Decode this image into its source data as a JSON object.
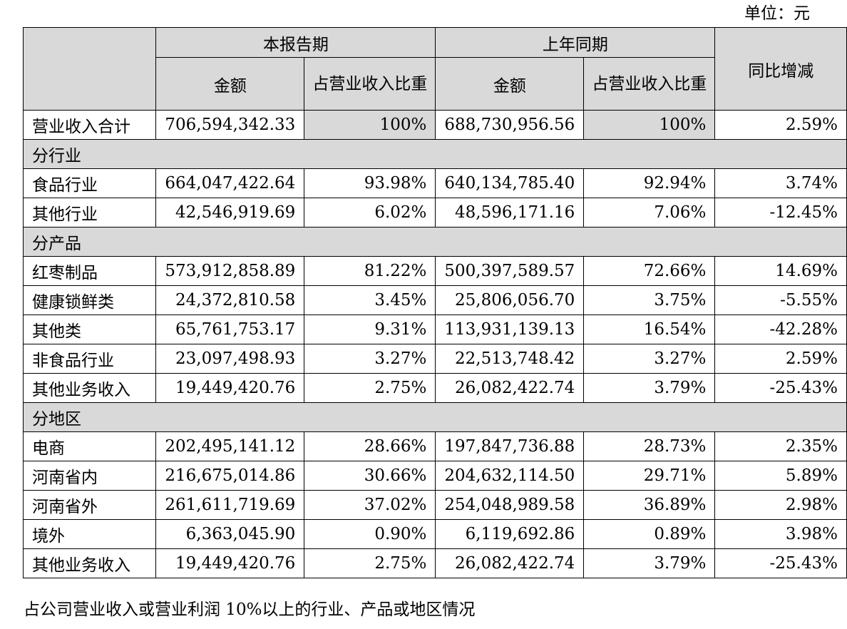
{
  "unit_label": "单位：元",
  "header": {
    "current_period": "本报告期",
    "prior_period": "上年同期",
    "amount": "金额",
    "share": "占营业收入比重",
    "yoy_change": "同比增减"
  },
  "total": {
    "label": "营业收入合计",
    "current_amount": "706,594,342.33",
    "current_share": "100%",
    "prior_amount": "688,730,956.56",
    "prior_share": "100%",
    "yoy": "2.59%"
  },
  "sections": {
    "industry": {
      "title": "分行业",
      "rows": [
        {
          "label": "食品行业",
          "current_amount": "664,047,422.64",
          "current_share": "93.98%",
          "prior_amount": "640,134,785.40",
          "prior_share": "92.94%",
          "yoy": "3.74%"
        },
        {
          "label": "其他行业",
          "current_amount": "42,546,919.69",
          "current_share": "6.02%",
          "prior_amount": "48,596,171.16",
          "prior_share": "7.06%",
          "yoy": "-12.45%"
        }
      ]
    },
    "product": {
      "title": "分产品",
      "rows": [
        {
          "label": "红枣制品",
          "current_amount": "573,912,858.89",
          "current_share": "81.22%",
          "prior_amount": "500,397,589.57",
          "prior_share": "72.66%",
          "yoy": "14.69%"
        },
        {
          "label": "健康锁鲜类",
          "current_amount": "24,372,810.58",
          "current_share": "3.45%",
          "prior_amount": "25,806,056.70",
          "prior_share": "3.75%",
          "yoy": "-5.55%"
        },
        {
          "label": "其他类",
          "current_amount": "65,761,753.17",
          "current_share": "9.31%",
          "prior_amount": "113,931,139.13",
          "prior_share": "16.54%",
          "yoy": "-42.28%"
        },
        {
          "label": "非食品行业",
          "current_amount": "23,097,498.93",
          "current_share": "3.27%",
          "prior_amount": "22,513,748.42",
          "prior_share": "3.27%",
          "yoy": "2.59%"
        },
        {
          "label": "其他业务收入",
          "current_amount": "19,449,420.76",
          "current_share": "2.75%",
          "prior_amount": "26,082,422.74",
          "prior_share": "3.79%",
          "yoy": "-25.43%"
        }
      ]
    },
    "region": {
      "title": "分地区",
      "rows": [
        {
          "label": "电商",
          "current_amount": "202,495,141.12",
          "current_share": "28.66%",
          "prior_amount": "197,847,736.88",
          "prior_share": "28.73%",
          "yoy": "2.35%"
        },
        {
          "label": "河南省内",
          "current_amount": "216,675,014.86",
          "current_share": "30.66%",
          "prior_amount": "204,632,114.50",
          "prior_share": "29.71%",
          "yoy": "5.89%"
        },
        {
          "label": "河南省外",
          "current_amount": "261,611,719.69",
          "current_share": "37.02%",
          "prior_amount": "254,048,989.58",
          "prior_share": "36.89%",
          "yoy": "2.98%"
        },
        {
          "label": "境外",
          "current_amount": "6,363,045.90",
          "current_share": "0.90%",
          "prior_amount": "6,119,692.86",
          "prior_share": "0.89%",
          "yoy": "3.98%"
        },
        {
          "label": "其他业务收入",
          "current_amount": "19,449,420.76",
          "current_share": "2.75%",
          "prior_amount": "26,082,422.74",
          "prior_share": "3.79%",
          "yoy": "-25.43%"
        }
      ]
    }
  },
  "footnote": "占公司营业收入或营业利润 10%以上的行业、产品或地区情况"
}
